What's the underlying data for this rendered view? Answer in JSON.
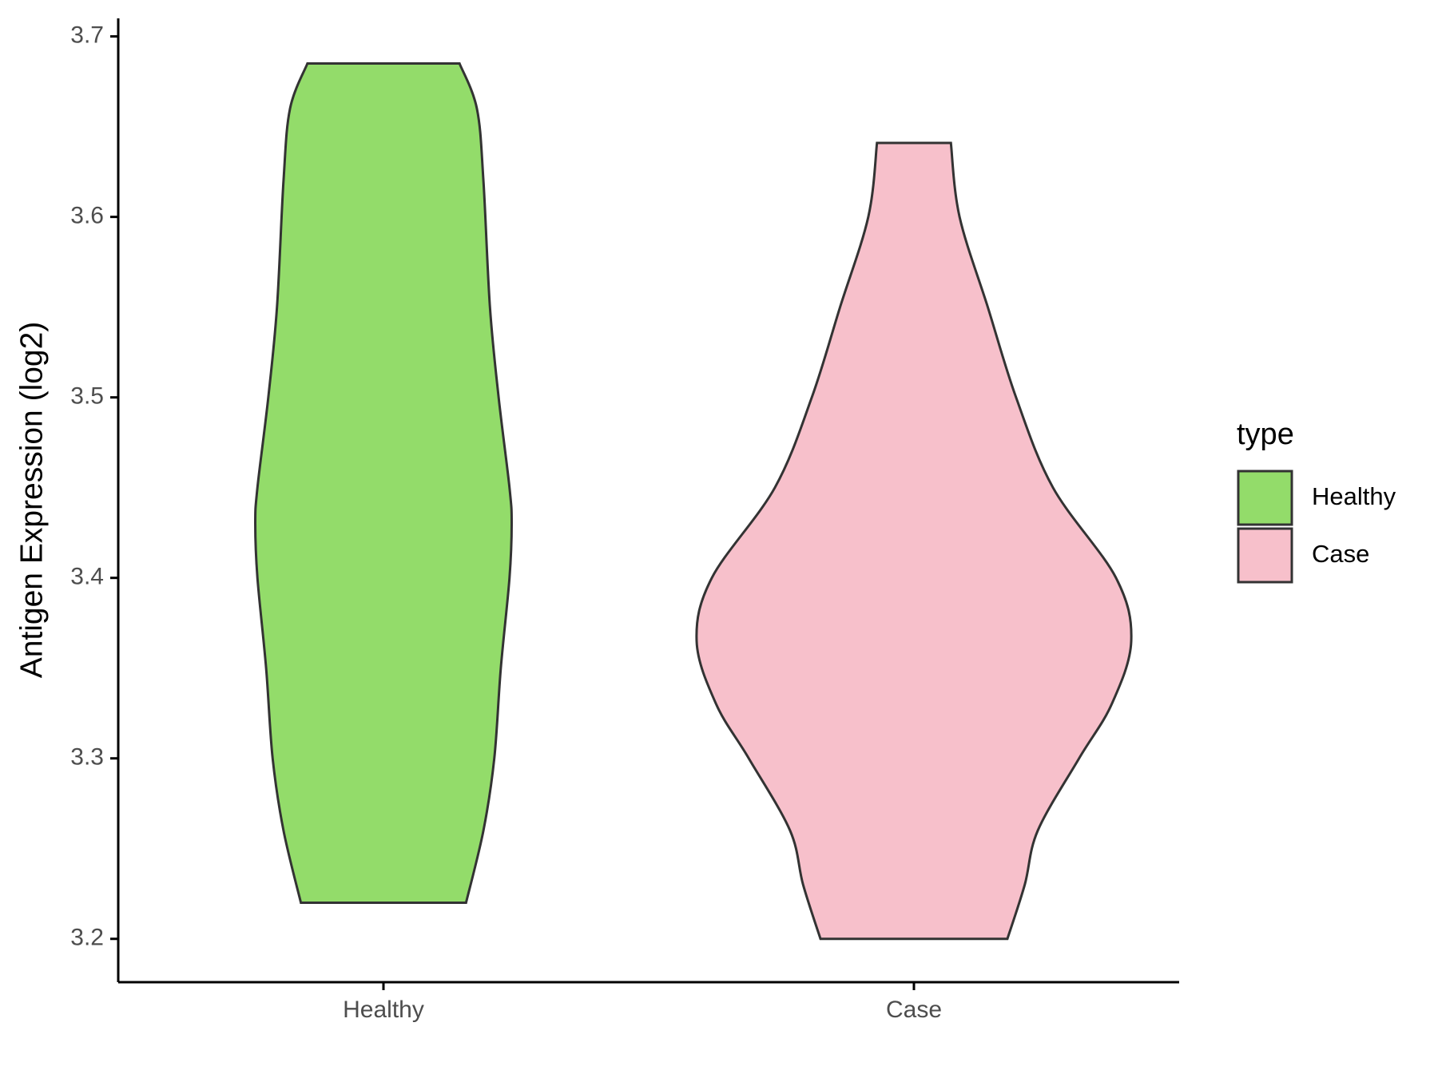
{
  "chart_data": {
    "type": "violin",
    "ylabel": "Antigen Expression (log2)",
    "categories": [
      "Healthy",
      "Case"
    ],
    "legend_title": "type",
    "legend": "right",
    "ylim": [
      3.176,
      3.71
    ],
    "yticks": [
      3.2,
      3.3,
      3.4,
      3.5,
      3.6,
      3.7
    ],
    "series": [
      {
        "name": "Healthy",
        "color": "#93dc6a",
        "y": [
          3.22,
          3.26,
          3.3,
          3.35,
          3.4,
          3.43,
          3.45,
          3.5,
          3.55,
          3.62,
          3.66,
          3.685
        ],
        "density": [
          0.38,
          0.46,
          0.51,
          0.54,
          0.58,
          0.59,
          0.58,
          0.53,
          0.49,
          0.46,
          0.43,
          0.35
        ]
      },
      {
        "name": "Case",
        "color": "#f7c0cb",
        "y": [
          3.2,
          3.23,
          3.26,
          3.3,
          3.33,
          3.365,
          3.4,
          3.45,
          3.5,
          3.55,
          3.6,
          3.641
        ],
        "density": [
          0.43,
          0.51,
          0.57,
          0.76,
          0.91,
          1,
          0.93,
          0.64,
          0.47,
          0.34,
          0.21,
          0.17
        ]
      }
    ]
  }
}
